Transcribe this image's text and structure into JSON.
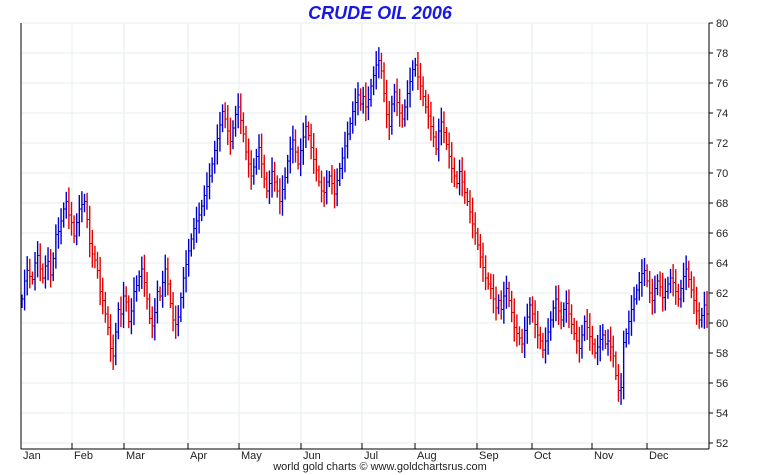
{
  "chart_data": {
    "type": "ohlc",
    "title": "CRUDE OIL 2006",
    "footer": "world gold charts © www.goldchartsrus.com",
    "xlabel": "",
    "ylabel": "",
    "ylim": [
      52,
      80
    ],
    "y_ticks": [
      "52",
      "54",
      "56",
      "58",
      "60",
      "62",
      "64",
      "66",
      "68",
      "70",
      "72",
      "74",
      "76",
      "78",
      "80"
    ],
    "x_labels": [
      "Jan",
      "Feb",
      "Mar",
      "Apr",
      "May",
      "Jun",
      "Jul",
      "Aug",
      "Sep",
      "Oct",
      "Nov",
      "Dec"
    ],
    "y_axis_side": "right",
    "grid": true,
    "colors": {
      "up": "#0000cc",
      "down": "#e00000",
      "title": "#1818e6",
      "grid": "#e6ecec",
      "axis": "#000000"
    },
    "series": [
      {
        "close": [
          61.6,
          62.8,
          63.5,
          63.1,
          62.9,
          64.0,
          64.5,
          63.6,
          63.0,
          63.8,
          64.1,
          63.2,
          64.3,
          65.9,
          66.1,
          66.8,
          67.6,
          68.1,
          67.2,
          66.7,
          65.8,
          66.7,
          67.6,
          67.9,
          68.1,
          66.9,
          65.3,
          64.6,
          64.2,
          63.5,
          62.1,
          61.5,
          60.6,
          59.7,
          58.3,
          57.8,
          59.4,
          60.9,
          60.6,
          61.8,
          61.4,
          60.1,
          60.8,
          62.1,
          62.5,
          63.1,
          63.6,
          62.7,
          61.6,
          60.3,
          59.8,
          60.7,
          62.1,
          61.8,
          62.7,
          63.6,
          62.6,
          61.3,
          60.2,
          59.9,
          60.4,
          61.7,
          63.0,
          63.9,
          64.8,
          65.6,
          66.3,
          66.8,
          67.2,
          67.8,
          68.5,
          69.1,
          69.8,
          70.6,
          71.5,
          72.3,
          73.2,
          74.1,
          73.6,
          72.8,
          72.1,
          73.0,
          73.9,
          74.4,
          73.5,
          72.6,
          71.4,
          70.6,
          69.8,
          70.4,
          71.1,
          71.7,
          70.6,
          69.6,
          68.8,
          69.3,
          70.1,
          69.4,
          68.8,
          68.1,
          68.9,
          69.7,
          70.8,
          71.6,
          72.2,
          71.4,
          70.6,
          71.5,
          72.4,
          73.1,
          72.5,
          71.7,
          70.9,
          70.2,
          69.4,
          68.8,
          68.7,
          69.4,
          69.8,
          69.3,
          68.6,
          69.5,
          70.3,
          71.0,
          71.8,
          72.6,
          73.3,
          74.1,
          74.7,
          75.2,
          74.6,
          75.1,
          74.4,
          74.9,
          75.8,
          76.5,
          77.2,
          77.5,
          76.8,
          75.3,
          73.9,
          73.1,
          74.6,
          75.4,
          74.7,
          74.0,
          73.6,
          74.4,
          75.3,
          76.1,
          76.9,
          77.2,
          76.4,
          75.8,
          75.1,
          74.4,
          73.8,
          73.1,
          72.4,
          71.6,
          72.8,
          73.4,
          72.7,
          71.9,
          71.1,
          70.3,
          69.8,
          69.3,
          70.1,
          69.4,
          68.7,
          68.1,
          67.4,
          66.6,
          66.0,
          65.2,
          64.4,
          63.7,
          63.0,
          62.6,
          62.3,
          61.6,
          61.0,
          61.5,
          60.9,
          61.8,
          62.3,
          61.5,
          60.7,
          59.7,
          59.3,
          59.0,
          58.6,
          59.5,
          60.4,
          61.2,
          60.6,
          59.9,
          59.2,
          58.8,
          58.2,
          58.8,
          59.4,
          60.2,
          61.0,
          61.6,
          60.8,
          60.2,
          60.9,
          61.3,
          60.6,
          59.9,
          59.3,
          58.8,
          58.3,
          59.2,
          60.1,
          59.7,
          59.1,
          58.6,
          58.0,
          58.4,
          58.9,
          59.2,
          58.6,
          58.8,
          58.4,
          57.8,
          56.5,
          55.5,
          55.7,
          58.7,
          59.3,
          60.1,
          60.9,
          61.6,
          62.2,
          62.7,
          63.3,
          63.5,
          62.8,
          62.0,
          61.5,
          62.3,
          62.8,
          62.4,
          61.7,
          62.1,
          62.6,
          63.0,
          62.7,
          62.1,
          61.6,
          62.3,
          63.1,
          63.6,
          62.9,
          62.2,
          61.5,
          60.8,
          60.2,
          60.5,
          61.2,
          60.6
        ]
      }
    ]
  }
}
